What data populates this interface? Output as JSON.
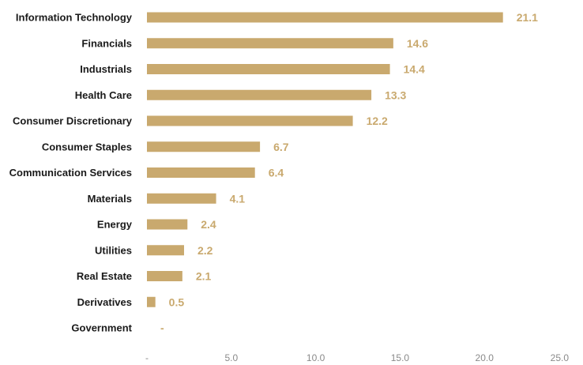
{
  "chart_data": {
    "type": "bar",
    "orientation": "horizontal",
    "categories": [
      "Information Technology",
      "Financials",
      "Industrials",
      "Health Care",
      "Consumer Discretionary",
      "Consumer Staples",
      "Communication Services",
      "Materials",
      "Energy",
      "Utilities",
      "Real Estate",
      "Derivatives",
      "Government"
    ],
    "values": [
      21.1,
      14.6,
      14.4,
      13.3,
      12.2,
      6.7,
      6.4,
      4.1,
      2.4,
      2.2,
      2.1,
      0.5,
      0
    ],
    "value_labels": [
      "21.1",
      "14.6",
      "14.4",
      "13.3",
      "12.2",
      "6.7",
      "6.4",
      "4.1",
      "2.4",
      "2.2",
      "2.1",
      "0.5",
      "-"
    ],
    "xlim": [
      0,
      25
    ],
    "x_ticks": [
      0,
      5,
      10,
      15,
      20,
      25
    ],
    "x_tick_labels": [
      "-",
      "5.0",
      "10.0",
      "15.0",
      "20.0",
      "25.0"
    ],
    "grid": false,
    "legend": "none",
    "bar_color": "#c9a96e",
    "value_label_color": "#c9a96e"
  }
}
